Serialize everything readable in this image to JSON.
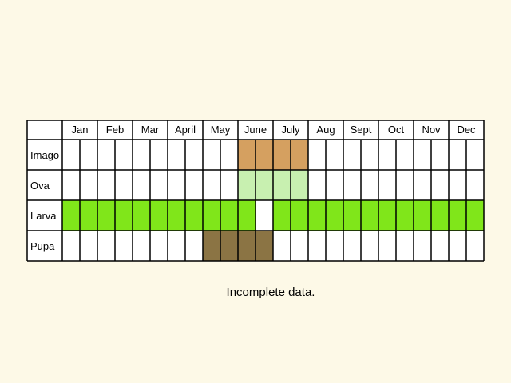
{
  "chart_data": {
    "type": "table",
    "title": "",
    "months": [
      "Jan",
      "Feb",
      "Mar",
      "April",
      "May",
      "June",
      "July",
      "Aug",
      "Sept",
      "Oct",
      "Nov",
      "Dec"
    ],
    "periods_per_month": 2,
    "stages": [
      {
        "name": "Imago",
        "color": "#d5a060",
        "periods": [
          11,
          12,
          13,
          14
        ]
      },
      {
        "name": "Ova",
        "color": "#c8f0b0",
        "periods": [
          11,
          12,
          13,
          14
        ]
      },
      {
        "name": "Larva",
        "color": "#80e61a",
        "periods": [
          1,
          2,
          3,
          4,
          5,
          6,
          7,
          8,
          9,
          10,
          11,
          13,
          14,
          15,
          16,
          17,
          18,
          19,
          20,
          21,
          22,
          23,
          24
        ]
      },
      {
        "name": "Pupa",
        "color": "#8b7444",
        "periods": [
          9,
          10,
          11,
          12
        ]
      }
    ],
    "grid_color": "#000000",
    "empty_cell_color": "#ffffff"
  },
  "footnote": "Incomplete data."
}
